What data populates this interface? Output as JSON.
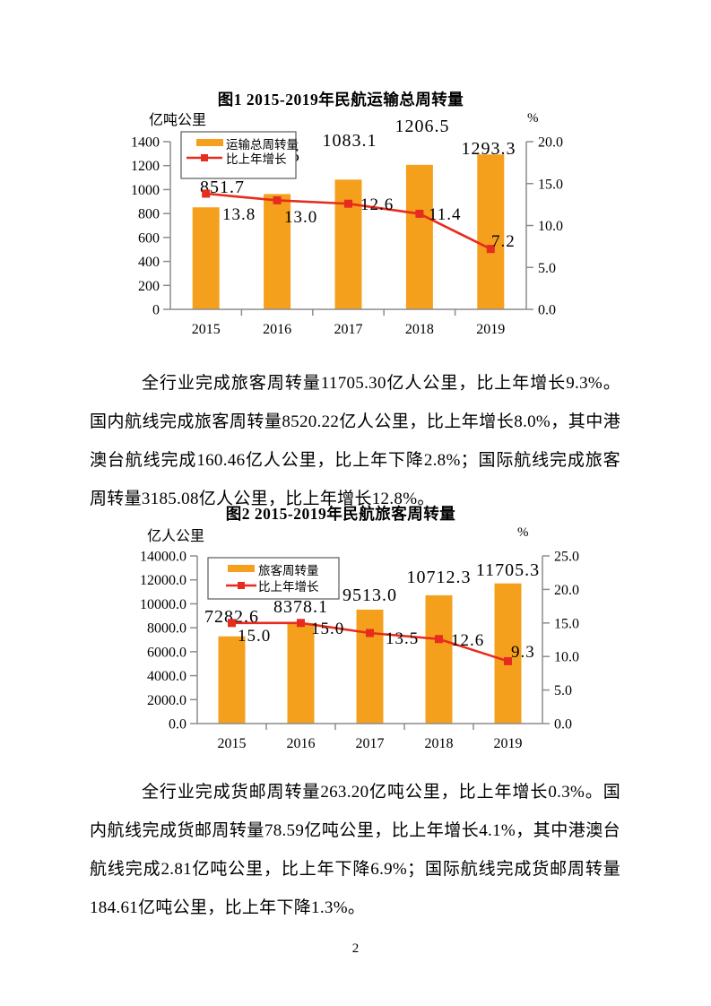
{
  "page": {
    "number": "2",
    "background": "#ffffff"
  },
  "colors": {
    "bar": "#f5a01d",
    "line": "#e62c1e",
    "axis": "#8c8c8c",
    "legend_border": "#595959",
    "text": "#000000"
  },
  "paragraphs": [
    {
      "text": "全行业完成旅客周转量11705.30亿人公里，比上年增长9.3%。国内航线完成旅客周转量8520.22亿人公里，比上年增长8.0%，其中港澳台航线完成160.46亿人公里，比上年下降2.8%；国际航线完成旅客周转量3185.08亿人公里，比上年增长12.8%。"
    },
    {
      "text": "全行业完成货邮周转量263.20亿吨公里，比上年增长0.3%。国内航线完成货邮周转量78.59亿吨公里，比上年增长4.1%，其中港澳台航线完成2.81亿吨公里，比上年下降6.9%；国际航线完成货邮周转量184.61亿吨公里，比上年下降1.3%。"
    }
  ],
  "chart_data": [
    {
      "type": "bar+line",
      "title": "图1 2015-2019年民航运输总周转量",
      "categories": [
        "2015",
        "2016",
        "2017",
        "2018",
        "2019"
      ],
      "series": [
        {
          "name": "运输总周转量",
          "type": "bar",
          "axis": "left",
          "values": [
            851.7,
            962.5,
            1083.1,
            1206.5,
            1293.3
          ]
        },
        {
          "name": "比上年增长",
          "type": "line",
          "axis": "right",
          "values": [
            13.8,
            13.0,
            12.6,
            11.4,
            7.2
          ]
        }
      ],
      "left_axis": {
        "unit": "亿吨公里",
        "min": 0,
        "max": 1400,
        "tick_labels": [
          "0",
          "200",
          "400",
          "600",
          "800",
          "1000",
          "1200",
          "1400"
        ]
      },
      "right_axis": {
        "unit": "%",
        "min": 0,
        "max": 20,
        "tick_labels": [
          "0.0",
          "5.0",
          "10.0",
          "15.0",
          "20.0"
        ]
      },
      "legend_position": "top-left",
      "grid": false
    },
    {
      "type": "bar+line",
      "title": "图2 2015-2019年民航旅客周转量",
      "categories": [
        "2015",
        "2016",
        "2017",
        "2018",
        "2019"
      ],
      "series": [
        {
          "name": "旅客周转量",
          "type": "bar",
          "axis": "left",
          "values": [
            7282.6,
            8378.1,
            9513.0,
            10712.3,
            11705.3
          ]
        },
        {
          "name": "比上年增长",
          "type": "line",
          "axis": "right",
          "values": [
            15.0,
            15.0,
            13.5,
            12.6,
            9.3
          ]
        }
      ],
      "left_axis": {
        "unit": "亿人公里",
        "min": 0,
        "max": 14000,
        "tick_labels": [
          "0.0",
          "2000.0",
          "4000.0",
          "6000.0",
          "8000.0",
          "10000.0",
          "12000.0",
          "14000.0"
        ]
      },
      "right_axis": {
        "unit": "%",
        "min": 0,
        "max": 25,
        "tick_labels": [
          "0.0",
          "5.0",
          "10.0",
          "15.0",
          "20.0",
          "25.0"
        ]
      },
      "legend_position": "top-left",
      "grid": false
    }
  ]
}
